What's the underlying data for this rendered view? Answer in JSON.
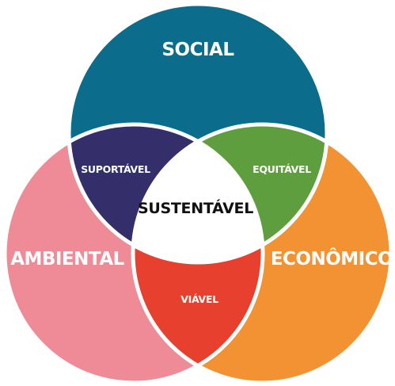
{
  "diagram": {
    "type": "venn-3-set",
    "sets": {
      "social": {
        "label": "SOCIAL",
        "color": "#0b6d8b"
      },
      "ambiental": {
        "label": "AMBIENTAL",
        "color": "#ee8b96"
      },
      "economico": {
        "label": "ECONÔMICO",
        "color": "#f39233"
      }
    },
    "intersections": {
      "social_ambiental": {
        "label": "SUPORTÁVEL",
        "color": "#342e6b"
      },
      "social_economico": {
        "label": "EQUITÁVEL",
        "color": "#5e9e3e"
      },
      "ambiental_economico": {
        "label": "VIÁVEL",
        "color": "#e7402f"
      },
      "all": {
        "label": "SUSTENTÁVEL",
        "color": "#ffffff"
      }
    },
    "outline_color": "#ffffff"
  }
}
